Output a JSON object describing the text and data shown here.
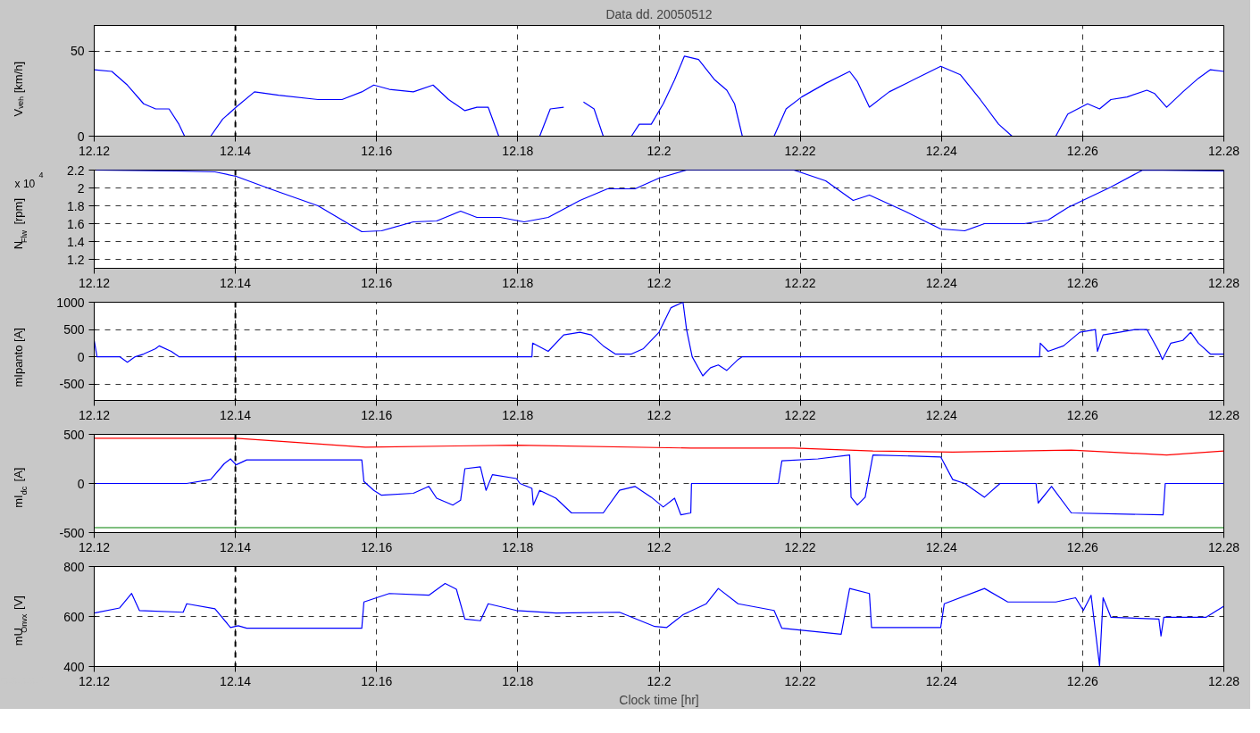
{
  "chart_data": [
    {
      "type": "line",
      "title": "Data dd. 20050512",
      "ylabel": "Vᵥₑₕ [km/h]",
      "xlim": [
        12.12,
        12.28
      ],
      "ylim": [
        0,
        65
      ],
      "xticks": [
        12.12,
        12.14,
        12.16,
        12.18,
        12.2,
        12.22,
        12.24,
        12.26,
        12.28
      ],
      "yticks": [
        0,
        50
      ],
      "grid": true,
      "marker": "none",
      "line_style": "solid",
      "ref_lines": [
        {
          "axis": "x",
          "value": 12.14,
          "color": "#000000",
          "line_style": "dashed"
        }
      ],
      "series": [
        {
          "color": "#0000ff",
          "x": [
            12.12,
            12.1225,
            12.1247,
            12.127,
            12.1287,
            12.1306,
            12.132,
            12.1328,
            12.1365,
            12.1382,
            12.1401,
            12.1427,
            12.1461,
            12.1517,
            12.1551,
            12.1579,
            12.1596,
            12.1618,
            12.1652,
            12.168,
            12.1702,
            12.1725,
            12.1742,
            12.1758,
            12.1773,
            12.1831,
            12.1846,
            12.1865,
            12.1875,
            12.1893,
            12.1908,
            12.1921,
            12.1961,
            12.1972,
            12.1989,
            12.2006,
            12.2022,
            12.2036,
            12.2056,
            12.2079,
            12.2096,
            12.2107,
            12.2118,
            12.2163,
            12.218,
            12.2202,
            12.2236,
            12.227,
            12.2281,
            12.2298,
            12.2326,
            12.236,
            12.2399,
            12.2427,
            12.2455,
            12.2481,
            12.25,
            12.2562,
            12.2579,
            12.2607,
            12.2624,
            12.264,
            12.2663,
            12.2691,
            12.2702,
            12.2719,
            12.2742,
            12.2764,
            12.2781,
            12.28
          ],
          "values": [
            39,
            38,
            30,
            19,
            16,
            16,
            7,
            0,
            0,
            10,
            17,
            26,
            24,
            21.5,
            21.5,
            26,
            30,
            27.5,
            26,
            30,
            21.5,
            15,
            17,
            17,
            0,
            0,
            16,
            17,
            null,
            20,
            16,
            0,
            0,
            7,
            7,
            19,
            33,
            47,
            45,
            33,
            27,
            19,
            0,
            0,
            16,
            23,
            31,
            38,
            32,
            17,
            26,
            33,
            41,
            36,
            21.5,
            7,
            0,
            0,
            13,
            19,
            16,
            21.5,
            23,
            27,
            25,
            17,
            26,
            34,
            39,
            38
          ]
        }
      ]
    },
    {
      "type": "line",
      "ylabel": "N$_{Flw}$ [rpm]",
      "annotations": [
        "x 10$^{4}$"
      ],
      "xlim": [
        12.12,
        12.28
      ],
      "ylim": [
        1.1,
        2.2
      ],
      "xticks": [
        12.12,
        12.14,
        12.16,
        12.18,
        12.2,
        12.22,
        12.24,
        12.26,
        12.28
      ],
      "yticks": [
        1.2,
        1.4,
        1.6,
        1.8,
        2,
        2.2
      ],
      "grid": true,
      "marker": "none",
      "line_style": "solid",
      "ref_lines": [
        {
          "axis": "x",
          "value": 12.14,
          "color": "#000000",
          "line_style": "dashed"
        }
      ],
      "series": [
        {
          "color": "#0000ff",
          "x": [
            12.12,
            12.1315,
            12.1371,
            12.1401,
            12.1449,
            12.1517,
            12.1579,
            12.1607,
            12.1652,
            12.1685,
            12.1719,
            12.1742,
            12.1775,
            12.1809,
            12.1843,
            12.1888,
            12.1927,
            12.1966,
            12.2,
            12.2039,
            12.2191,
            12.2236,
            12.2275,
            12.2298,
            12.2348,
            12.2399,
            12.2433,
            12.2461,
            12.2517,
            12.2551,
            12.2579,
            12.264,
            12.2685,
            12.28
          ],
          "values": [
            2.2,
            2.19,
            2.18,
            2.13,
            1.99,
            1.8,
            1.51,
            1.52,
            1.62,
            1.63,
            1.74,
            1.67,
            1.67,
            1.62,
            1.67,
            1.86,
            1.99,
            1.99,
            2.11,
            2.2,
            2.2,
            2.08,
            1.86,
            1.92,
            1.74,
            1.54,
            1.52,
            1.6,
            1.6,
            1.64,
            1.78,
            2.01,
            2.2,
            2.19
          ]
        }
      ]
    },
    {
      "type": "line",
      "ylabel": "mIpanto [A]",
      "xlim": [
        12.12,
        12.28
      ],
      "ylim": [
        -800,
        1000
      ],
      "xticks": [
        12.12,
        12.14,
        12.16,
        12.18,
        12.2,
        12.22,
        12.24,
        12.26,
        12.28
      ],
      "yticks": [
        -500,
        0,
        500,
        1000
      ],
      "grid": true,
      "marker": "none",
      "line_style": "solid",
      "ref_lines": [
        {
          "axis": "x",
          "value": 12.14,
          "color": "#000000",
          "line_style": "dashed"
        }
      ],
      "series": [
        {
          "color": "#0000ff",
          "x": [
            12.12,
            12.1204,
            12.1236,
            12.1247,
            12.1258,
            12.127,
            12.1287,
            12.1292,
            12.1309,
            12.132,
            12.1326,
            12.182,
            12.1821,
            12.1843,
            12.1865,
            12.1888,
            12.1904,
            12.1921,
            12.1938,
            12.1961,
            12.1978,
            12.2,
            12.2017,
            12.2034,
            12.2039,
            12.2047,
            12.2062,
            12.2073,
            12.2084,
            12.2096,
            12.2112,
            12.2118,
            12.2539,
            12.254,
            12.2551,
            12.2573,
            12.2596,
            12.2618,
            12.2621,
            12.2629,
            12.2652,
            12.2674,
            12.2691,
            12.2708,
            12.2713,
            12.2725,
            12.2742,
            12.2753,
            12.2764,
            12.2781,
            12.28
          ],
          "values": [
            300,
            0,
            0,
            -100,
            0,
            50,
            150,
            200,
            100,
            0,
            0,
            0,
            250,
            100,
            400,
            450,
            400,
            200,
            50,
            50,
            150,
            450,
            900,
            1000,
            500,
            0,
            -350,
            -200,
            -150,
            -250,
            -50,
            0,
            0,
            250,
            100,
            200,
            450,
            500,
            100,
            400,
            450,
            500,
            500,
            100,
            -50,
            250,
            300,
            450,
            250,
            50,
            50
          ]
        }
      ]
    },
    {
      "type": "line",
      "ylabel": "mI$_{dc}$ [A]",
      "xlim": [
        12.12,
        12.28
      ],
      "ylim": [
        -500,
        500
      ],
      "xticks": [
        12.12,
        12.14,
        12.16,
        12.18,
        12.2,
        12.22,
        12.24,
        12.26,
        12.28
      ],
      "yticks": [
        -500,
        0,
        500
      ],
      "grid": true,
      "marker": "none",
      "line_style": "solid",
      "ref_lines": [
        {
          "axis": "x",
          "value": 12.14,
          "color": "#000000",
          "line_style": "dashed"
        }
      ],
      "series": [
        {
          "color": "#ff0000",
          "x": [
            12.12,
            12.1401,
            12.1584,
            12.1798,
            12.2045,
            12.2191,
            12.2303,
            12.2416,
            12.2584,
            12.2719,
            12.28
          ],
          "values": [
            460,
            460,
            370,
            390,
            360,
            360,
            330,
            320,
            340,
            290,
            330
          ]
        },
        {
          "color": "#008000",
          "x": [
            12.12,
            12.28
          ],
          "values": [
            -450,
            -450
          ]
        },
        {
          "color": "#0000ff",
          "x": [
            12.12,
            12.1331,
            12.1365,
            12.1384,
            12.1393,
            12.1401,
            12.1416,
            12.1579,
            12.1582,
            12.1596,
            12.1607,
            12.1652,
            12.1674,
            12.1685,
            12.1708,
            12.1719,
            12.1725,
            12.1747,
            12.1755,
            12.1764,
            12.1798,
            12.1803,
            12.182,
            12.1822,
            12.1831,
            12.1854,
            12.1876,
            12.1921,
            12.1944,
            12.1966,
            12.1989,
            12.2006,
            12.2022,
            12.2031,
            12.2045,
            12.2046,
            12.2169,
            12.2174,
            12.2225,
            12.227,
            12.2272,
            12.2281,
            12.2292,
            12.2303,
            12.2399,
            12.2416,
            12.2433,
            12.2461,
            12.2483,
            12.2534,
            12.2537,
            12.2556,
            12.2584,
            12.2714,
            12.2717,
            12.28
          ],
          "values": [
            0,
            0,
            40,
            200,
            250,
            190,
            240,
            240,
            20,
            -70,
            -120,
            -100,
            -30,
            -150,
            -220,
            -170,
            150,
            170,
            -70,
            90,
            50,
            0,
            -50,
            -220,
            -70,
            -150,
            -300,
            -300,
            -70,
            -30,
            -140,
            -240,
            -150,
            -320,
            -300,
            0,
            0,
            230,
            250,
            290,
            -140,
            -220,
            -140,
            290,
            270,
            40,
            0,
            -140,
            0,
            0,
            -200,
            -30,
            -300,
            -320,
            0,
            0
          ]
        }
      ]
    },
    {
      "type": "line",
      "ylabel": "mU$_{Onvx}$ [V]",
      "xlabel": "Clock time [hr]",
      "xlim": [
        12.12,
        12.28
      ],
      "ylim": [
        400,
        800
      ],
      "xticks": [
        12.12,
        12.14,
        12.16,
        12.18,
        12.2,
        12.22,
        12.24,
        12.26,
        12.28
      ],
      "yticks": [
        400,
        600,
        800
      ],
      "grid": true,
      "marker": "none",
      "line_style": "solid",
      "ref_lines": [
        {
          "axis": "x",
          "value": 12.14,
          "color": "#000000",
          "line_style": "dashed"
        }
      ],
      "series": [
        {
          "color": "#0000ff",
          "x": [
            12.12,
            12.1236,
            12.1253,
            12.1264,
            12.1326,
            12.1331,
            12.1371,
            12.1393,
            12.1404,
            12.1416,
            12.1579,
            12.1582,
            12.1618,
            12.1674,
            12.1697,
            12.1713,
            12.1725,
            12.1747,
            12.1758,
            12.1798,
            12.1854,
            12.1944,
            12.1994,
            12.2011,
            12.2034,
            12.2067,
            12.2084,
            12.2112,
            12.2163,
            12.2174,
            12.2258,
            12.227,
            12.2298,
            12.2301,
            12.2399,
            12.2404,
            12.2461,
            12.2494,
            12.2539,
            12.2562,
            12.259,
            12.2601,
            12.2612,
            12.2624,
            12.2629,
            12.264,
            12.2708,
            12.2711,
            12.2715,
            12.2775,
            12.28
          ],
          "values": [
            614,
            634,
            692,
            624,
            617,
            651,
            631,
            556,
            563,
            553,
            553,
            658,
            692,
            685,
            732,
            709,
            590,
            583,
            651,
            624,
            614,
            617,
            560,
            556,
            607,
            651,
            712,
            651,
            624,
            553,
            529,
            712,
            692,
            556,
            556,
            651,
            712,
            658,
            658,
            658,
            675,
            624,
            685,
            403,
            675,
            597,
            590,
            522,
            597,
            597,
            641
          ]
        }
      ]
    }
  ]
}
